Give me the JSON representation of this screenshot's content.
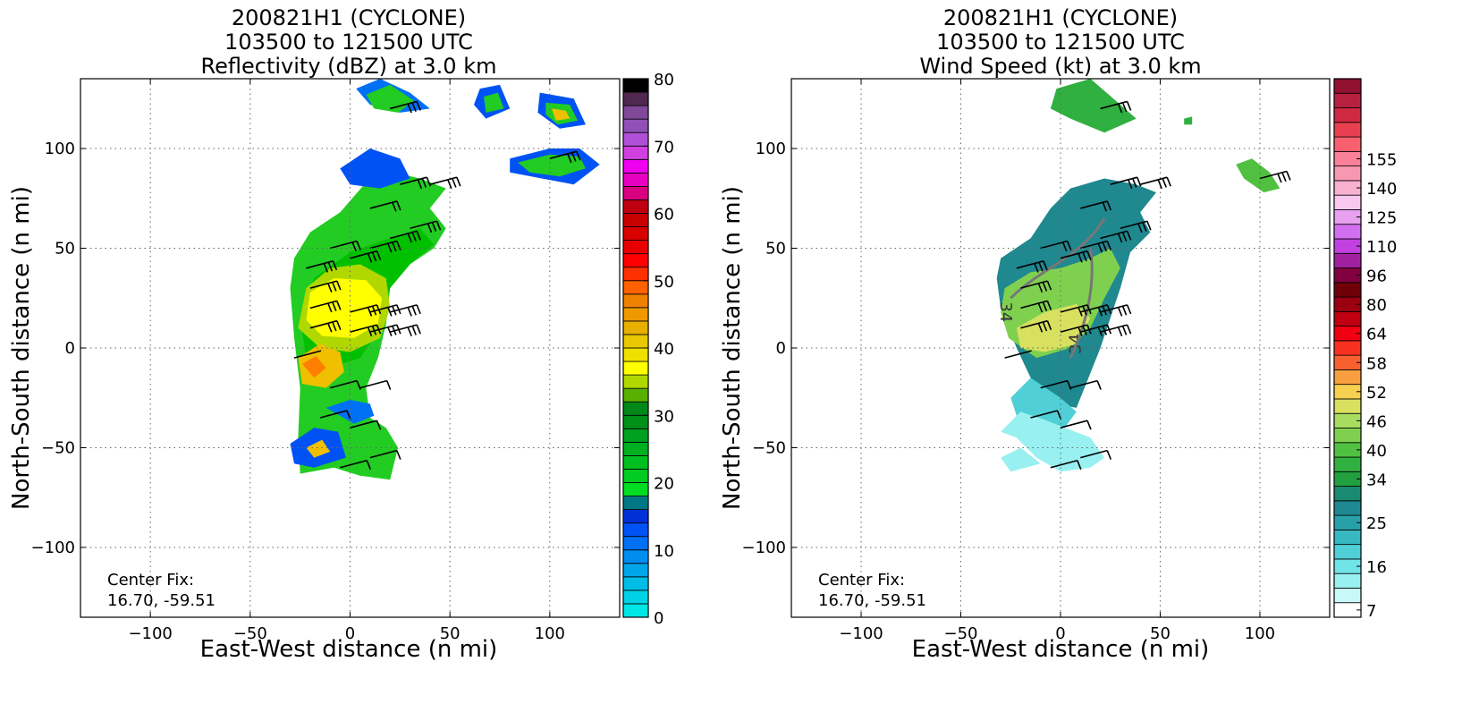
{
  "chart_data": [
    {
      "type": "heatmap",
      "id": "left",
      "title_lines": [
        "200821H1 (CYCLONE)",
        "103500 to 121500 UTC",
        "Reflectivity (dBZ) at 3.0 km"
      ],
      "xlabel": "East-West distance (n mi)",
      "ylabel": "North-South distance (n mi)",
      "xlim": [
        -135,
        135
      ],
      "ylim": [
        -135,
        135
      ],
      "xticks": [
        -100,
        -50,
        0,
        50,
        100
      ],
      "yticks": [
        -100,
        -50,
        0,
        50,
        100
      ],
      "xtick_labels": [
        "−100",
        "−50",
        "0",
        "50",
        "100"
      ],
      "ytick_labels": [
        "−100",
        "−50",
        "0",
        "50",
        "100"
      ],
      "grid": true,
      "annotation": [
        "Center Fix:",
        "16.70, -59.51"
      ],
      "colorbar": {
        "min": 0,
        "max": 80,
        "tick_values": [
          0,
          10,
          20,
          30,
          40,
          50,
          60,
          70,
          80
        ],
        "tick_labels": [
          "0",
          "10",
          "20",
          "30",
          "40",
          "50",
          "60",
          "70",
          "80"
        ],
        "colors": [
          "#00e5e5",
          "#00d2e6",
          "#00bde8",
          "#00a6ea",
          "#008df0",
          "#0070f5",
          "#0052f5",
          "#0030d8",
          "#007785",
          "#00dd22",
          "#00cc22",
          "#00bf20",
          "#00b020",
          "#00a020",
          "#009018",
          "#008818",
          "#5ab000",
          "#b0d800",
          "#ffff00",
          "#f0e000",
          "#e8c800",
          "#e8b000",
          "#f09800",
          "#f08000",
          "#ff6000",
          "#ff3000",
          "#ff0000",
          "#e80000",
          "#d80000",
          "#c80000",
          "#c00010",
          "#d80080",
          "#e800c0",
          "#f000f0",
          "#d040e0",
          "#b050d8",
          "#9050b8",
          "#804898",
          "#502850",
          "#000000"
        ]
      }
    },
    {
      "type": "heatmap",
      "id": "right",
      "title_lines": [
        "200821H1 (CYCLONE)",
        "103500 to 121500 UTC",
        "Wind Speed (kt) at 3.0 km"
      ],
      "xlabel": "East-West distance (n mi)",
      "ylabel": "North-South distance (n mi)",
      "xlim": [
        -135,
        135
      ],
      "ylim": [
        -135,
        135
      ],
      "xticks": [
        -100,
        -50,
        0,
        50,
        100
      ],
      "yticks": [
        -100,
        -50,
        0,
        50,
        100
      ],
      "xtick_labels": [
        "−100",
        "−50",
        "0",
        "50",
        "100"
      ],
      "ytick_labels": [
        "−100",
        "−50",
        "0",
        "50",
        "100"
      ],
      "grid": true,
      "annotation": [
        "Center Fix:",
        "16.70, -59.51"
      ],
      "contour_labels": [
        "34",
        "34"
      ],
      "colorbar": {
        "tick_labels": [
          "7",
          "16",
          "25",
          "34",
          "40",
          "46",
          "52",
          "58",
          "64",
          "80",
          "96",
          "110",
          "125",
          "140",
          "155"
        ],
        "tick_index": [
          0,
          3,
          6,
          9,
          11,
          13,
          15,
          17,
          19,
          21,
          23,
          25,
          27,
          29,
          31
        ],
        "colors": [
          "#ffffff",
          "#c8f8f8",
          "#98f0f0",
          "#70e4e6",
          "#50d0d6",
          "#38b8c0",
          "#28a0aa",
          "#208890",
          "#1a8a70",
          "#22a040",
          "#30b040",
          "#50c040",
          "#80d050",
          "#a8dc60",
          "#d8e060",
          "#f8d050",
          "#f8a040",
          "#f86030",
          "#f83020",
          "#f00010",
          "#c00010",
          "#9a0010",
          "#700008",
          "#800040",
          "#a020a0",
          "#c040e0",
          "#d070f0",
          "#e8a0f0",
          "#f8c8f0",
          "#f8b0d0",
          "#f898b0",
          "#f88098",
          "#f86070",
          "#e84050",
          "#d02840",
          "#b82040",
          "#901030"
        ]
      }
    }
  ]
}
